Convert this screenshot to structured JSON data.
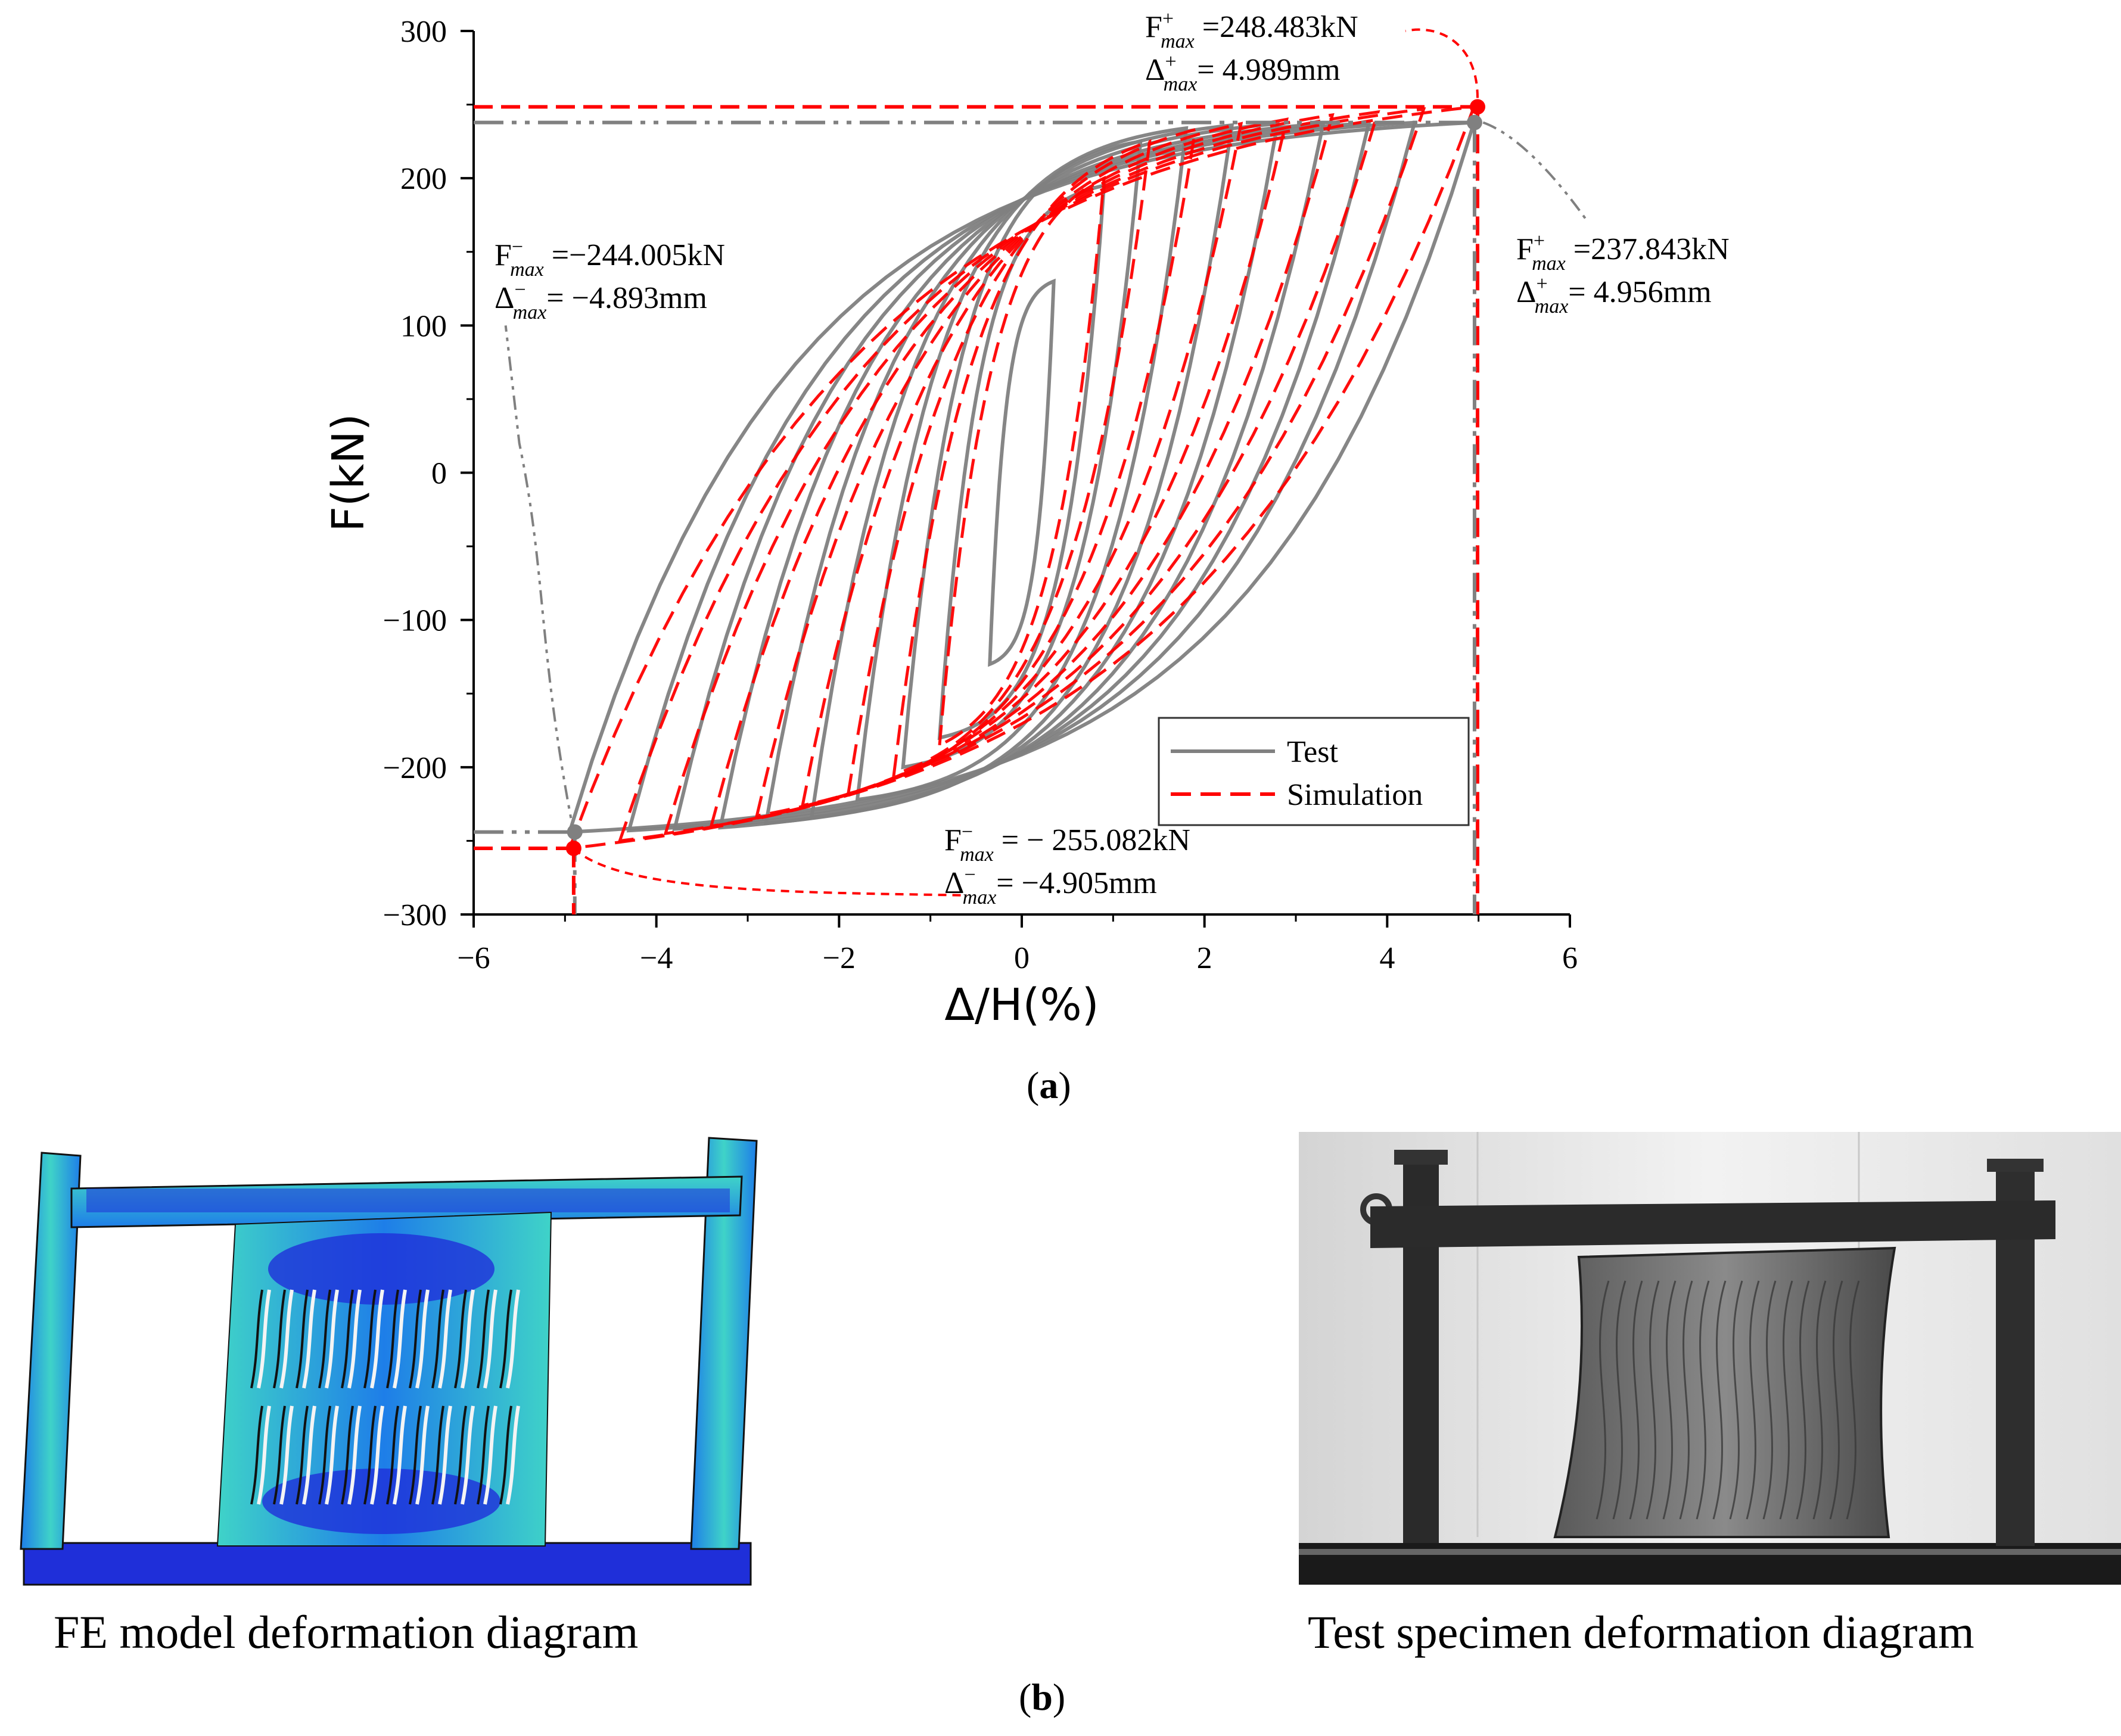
{
  "panel_a_label": "a",
  "panel_b_label": "b",
  "chart_data": {
    "type": "line",
    "xlabel": "Δ/H(%)",
    "ylabel": "F(kN)",
    "xlim": [
      -6,
      6
    ],
    "ylim": [
      -300,
      300
    ],
    "xticks": [
      -6,
      -4,
      -2,
      0,
      2,
      4,
      6
    ],
    "yticks": [
      300,
      200,
      100,
      0,
      -100,
      -200,
      -300
    ],
    "grid": false,
    "legend_position": "lower-right",
    "legend": [
      {
        "name": "Test",
        "color": "#808080",
        "dash": "solid"
      },
      {
        "name": "Simulation",
        "color": "#ff0000",
        "dash": "dashed"
      }
    ],
    "series": [
      {
        "name": "Test",
        "color": "#808080",
        "loops": [
          {
            "amp": 0.35,
            "pos_peak": 130,
            "neg_peak": -130
          },
          {
            "amp": 0.9,
            "pos_peak": 195,
            "neg_peak": -180
          },
          {
            "amp": 1.3,
            "pos_peak": 225,
            "neg_peak": -200
          },
          {
            "amp": 1.8,
            "pos_peak": 234,
            "neg_peak": -222
          },
          {
            "amp": 2.3,
            "pos_peak": 236,
            "neg_peak": -234
          },
          {
            "amp": 2.8,
            "pos_peak": 237,
            "neg_peak": -238
          },
          {
            "amp": 3.3,
            "pos_peak": 237,
            "neg_peak": -241
          },
          {
            "amp": 3.8,
            "pos_peak": 237.5,
            "neg_peak": -242
          },
          {
            "amp": 4.3,
            "pos_peak": 237.8,
            "neg_peak": -243
          },
          {
            "amp": 4.95,
            "pos_peak": 237.843,
            "neg_peak": -244.005
          }
        ]
      },
      {
        "name": "Simulation",
        "color": "#ff0000",
        "loops": [
          {
            "amp": 0.9,
            "pos_peak": 200,
            "neg_peak": -185
          },
          {
            "amp": 1.4,
            "pos_peak": 225,
            "neg_peak": -205
          },
          {
            "amp": 1.9,
            "pos_peak": 233,
            "neg_peak": -218
          },
          {
            "amp": 2.4,
            "pos_peak": 237,
            "neg_peak": -226
          },
          {
            "amp": 2.9,
            "pos_peak": 240,
            "neg_peak": -233
          },
          {
            "amp": 3.4,
            "pos_peak": 243,
            "neg_peak": -240
          },
          {
            "amp": 3.9,
            "pos_peak": 245,
            "neg_peak": -245
          },
          {
            "amp": 4.4,
            "pos_peak": 247,
            "neg_peak": -250
          },
          {
            "amp": 4.95,
            "pos_peak": 248.483,
            "neg_peak": -255.082
          }
        ]
      }
    ],
    "peak_points": [
      {
        "series": "Simulation",
        "x": 4.989,
        "y": 248.483
      },
      {
        "series": "Test",
        "x": 4.956,
        "y": 237.843
      },
      {
        "series": "Test",
        "x": -4.893,
        "y": -244.005
      },
      {
        "series": "Simulation",
        "x": -4.905,
        "y": -255.082
      }
    ],
    "annotations": [
      {
        "f_value": "=248.483kN",
        "d_value": "= 4.989mm",
        "sign": "+"
      },
      {
        "f_value": "=237.843kN",
        "d_value": "= 4.956mm",
        "sign": "+"
      },
      {
        "f_value": "=−244.005kN",
        "d_value": "= −4.893mm",
        "sign": "−"
      },
      {
        "f_value": "= − 255.082kN",
        "d_value": "= −4.905mm",
        "sign": "−"
      }
    ]
  },
  "images": [
    {
      "caption": "FE model deformation diagram"
    },
    {
      "caption": "Test specimen deformation diagram"
    }
  ],
  "colors": {
    "test": "#808080",
    "simulation": "#ff0000",
    "fe_dark": "#1f2fd9",
    "fe_mid": "#1e7ee8",
    "fe_light": "#3fd3c8",
    "fe_green": "#8fe36b"
  }
}
